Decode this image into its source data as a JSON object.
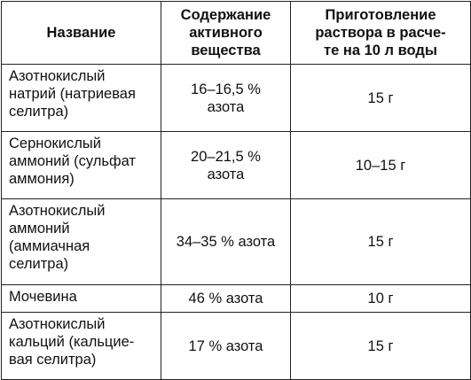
{
  "table": {
    "headers": [
      "Название",
      "Содержание активного вещества",
      "Приготовление раствора в расчете на 10 л воды"
    ],
    "header_lines": [
      [
        "Название"
      ],
      [
        "Содержание",
        "активного",
        "вещества"
      ],
      [
        "Приготовление",
        "раствора в расче-",
        "те на 10 л воды"
      ]
    ],
    "rows": [
      {
        "name_lines": [
          "Азотнокислый",
          "натрий (натриевая",
          "селитра)"
        ],
        "content_lines": [
          "16–16,5 %",
          "азота"
        ],
        "solution": "15 г",
        "height": 76
      },
      {
        "name_lines": [
          "Сернокислый",
          "аммоний (сульфат",
          "аммония)"
        ],
        "content_lines": [
          "20–21,5 %",
          "азота"
        ],
        "solution": "10–15 г",
        "height": 76
      },
      {
        "name_lines": [
          "Азотнокислый",
          "аммоний",
          "(аммиачная",
          "селитра)"
        ],
        "content_lines": [
          "34–35 % азота"
        ],
        "solution": "15 г",
        "height": 97
      },
      {
        "name_lines": [
          "Мочевина"
        ],
        "content_lines": [
          "46 % азота"
        ],
        "solution": "10 г",
        "height": 31
      },
      {
        "name_lines": [
          "Азотнокислый",
          "кальций (кальцие-",
          "вая селитра)"
        ],
        "content_lines": [
          "17 % азота"
        ],
        "solution": "15 г",
        "height": 76
      }
    ]
  }
}
